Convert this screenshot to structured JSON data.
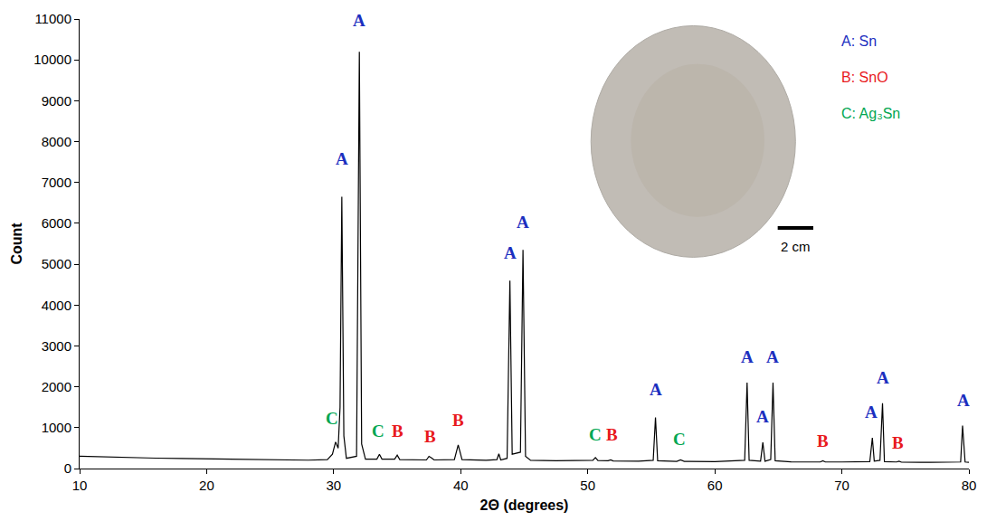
{
  "chart_data": {
    "type": "line",
    "x_label": "2Θ (degrees)",
    "y_label": "Count",
    "color": "#000000",
    "grid": false,
    "xlim": [
      10,
      80
    ],
    "ylim": [
      0,
      11000
    ],
    "xticks": [
      10,
      20,
      30,
      40,
      50,
      60,
      70,
      80
    ],
    "yticks": [
      0,
      1000,
      2000,
      3000,
      4000,
      5000,
      6000,
      7000,
      8000,
      9000,
      10000,
      11000
    ],
    "x": [
      10,
      12,
      14,
      16,
      18,
      20,
      22,
      24,
      26,
      28,
      29.5,
      29.9,
      30.15,
      30.35,
      30.5,
      30.64,
      30.8,
      31.0,
      31.8,
      32.02,
      32.2,
      32.5,
      33.4,
      33.6,
      33.8,
      34.8,
      35.0,
      35.2,
      37.3,
      37.5,
      37.7,
      37.9,
      39.5,
      39.8,
      40.1,
      42.0,
      42.85,
      43.0,
      43.15,
      43.65,
      43.87,
      44.05,
      44.7,
      44.9,
      45.1,
      45.5,
      47.5,
      50.4,
      50.6,
      50.8,
      51.6,
      51.8,
      52.0,
      54.0,
      55.15,
      55.33,
      55.5,
      57.0,
      57.3,
      57.6,
      60.0,
      62.35,
      62.54,
      62.7,
      63.6,
      63.78,
      63.95,
      64.4,
      64.58,
      64.75,
      66.0,
      68.3,
      68.5,
      68.7,
      70.0,
      72.2,
      72.4,
      72.55,
      73.0,
      73.2,
      73.35,
      74.3,
      74.5,
      74.7,
      77.0,
      79.35,
      79.5,
      79.7,
      80.0
    ],
    "values": [
      300,
      280,
      270,
      255,
      245,
      235,
      225,
      215,
      210,
      205,
      220,
      350,
      650,
      500,
      1500,
      6650,
      800,
      250,
      300,
      10200,
      600,
      230,
      230,
      350,
      230,
      230,
      330,
      220,
      210,
      300,
      260,
      210,
      220,
      580,
      220,
      200,
      220,
      360,
      210,
      250,
      4600,
      350,
      400,
      5350,
      300,
      200,
      190,
      200,
      270,
      195,
      190,
      210,
      185,
      180,
      200,
      1250,
      190,
      175,
      210,
      175,
      170,
      200,
      2100,
      200,
      180,
      640,
      180,
      220,
      2100,
      190,
      165,
      160,
      190,
      160,
      160,
      170,
      750,
      180,
      200,
      1600,
      170,
      160,
      180,
      155,
      150,
      160,
      1050,
      160,
      150
    ],
    "annotations": [
      {
        "text": "A",
        "x": 30.64,
        "y": 7300,
        "color": "#1c2fbf"
      },
      {
        "text": "A",
        "x": 32.02,
        "y": 10700,
        "color": "#1c2fbf"
      },
      {
        "text": "A",
        "x": 43.87,
        "y": 5000,
        "color": "#1c2fbf"
      },
      {
        "text": "A",
        "x": 44.9,
        "y": 5750,
        "color": "#1c2fbf"
      },
      {
        "text": "A",
        "x": 55.33,
        "y": 1650,
        "color": "#1c2fbf"
      },
      {
        "text": "A",
        "x": 62.54,
        "y": 2450,
        "color": "#1c2fbf"
      },
      {
        "text": "A",
        "x": 63.78,
        "y": 1000,
        "color": "#1c2fbf"
      },
      {
        "text": "A",
        "x": 64.58,
        "y": 2450,
        "color": "#1c2fbf"
      },
      {
        "text": "A",
        "x": 72.3,
        "y": 1100,
        "color": "#1c2fbf"
      },
      {
        "text": "A",
        "x": 73.2,
        "y": 1950,
        "color": "#1c2fbf"
      },
      {
        "text": "A",
        "x": 79.6,
        "y": 1400,
        "color": "#1c2fbf"
      },
      {
        "text": "C",
        "x": 29.9,
        "y": 950,
        "color": "#00a651"
      },
      {
        "text": "C",
        "x": 33.5,
        "y": 650,
        "color": "#00a651"
      },
      {
        "text": "B",
        "x": 35.0,
        "y": 650,
        "color": "#e8191c"
      },
      {
        "text": "B",
        "x": 37.6,
        "y": 500,
        "color": "#e8191c"
      },
      {
        "text": "B",
        "x": 39.8,
        "y": 900,
        "color": "#e8191c"
      },
      {
        "text": "C",
        "x": 50.6,
        "y": 550,
        "color": "#00a651"
      },
      {
        "text": "B",
        "x": 51.9,
        "y": 550,
        "color": "#e8191c"
      },
      {
        "text": "C",
        "x": 57.2,
        "y": 450,
        "color": "#00a651"
      },
      {
        "text": "B",
        "x": 68.5,
        "y": 400,
        "color": "#e8191c"
      },
      {
        "text": "B",
        "x": 74.4,
        "y": 350,
        "color": "#e8191c"
      }
    ],
    "key": [
      {
        "text": "A: Sn",
        "color": "#1c2fbf"
      },
      {
        "text": "B: SnO",
        "color": "#e8191c"
      },
      {
        "text": "C: Ag₃Sn",
        "color": "#00a651"
      }
    ],
    "scale_bar": "2 cm"
  }
}
